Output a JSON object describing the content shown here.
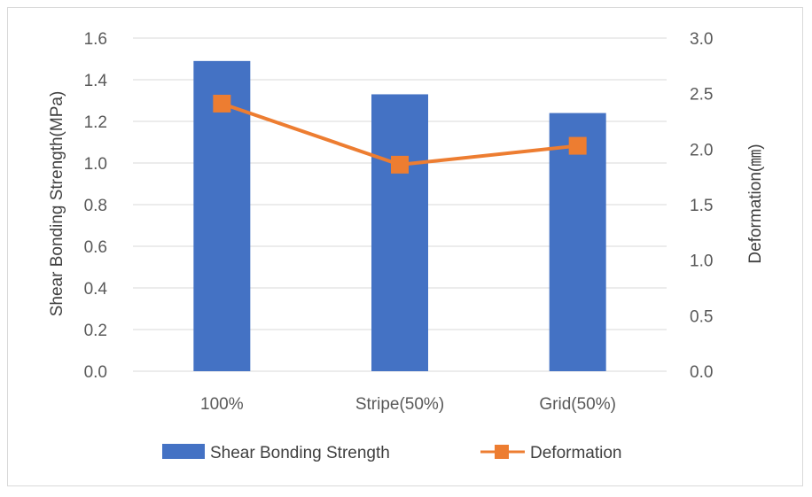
{
  "chart_data": {
    "type": "bar",
    "categories": [
      "100%",
      "Stripe(50%)",
      "Grid(50%)"
    ],
    "series": [
      {
        "name": "Shear Bonding Strength",
        "type": "bar",
        "axis": "left",
        "color": "#4472C4",
        "values": [
          1.49,
          1.33,
          1.24
        ]
      },
      {
        "name": "Deformation",
        "type": "line",
        "axis": "right",
        "color": "#ED7D31",
        "marker": "square",
        "values": [
          2.41,
          1.86,
          2.03
        ]
      }
    ],
    "ylabel": "Shear Bonding Strength(MPa)",
    "y2label": "Deformation(㎜)",
    "ylim": [
      0,
      1.6
    ],
    "y2lim": [
      0,
      3.0
    ],
    "yticks": [
      "0.0",
      "0.2",
      "0.4",
      "0.6",
      "0.8",
      "1.0",
      "1.2",
      "1.4",
      "1.6"
    ],
    "y2ticks": [
      "0.0",
      "0.5",
      "1.0",
      "1.5",
      "2.0",
      "2.5",
      "3.0"
    ],
    "grid": true,
    "legend": "bottom"
  }
}
